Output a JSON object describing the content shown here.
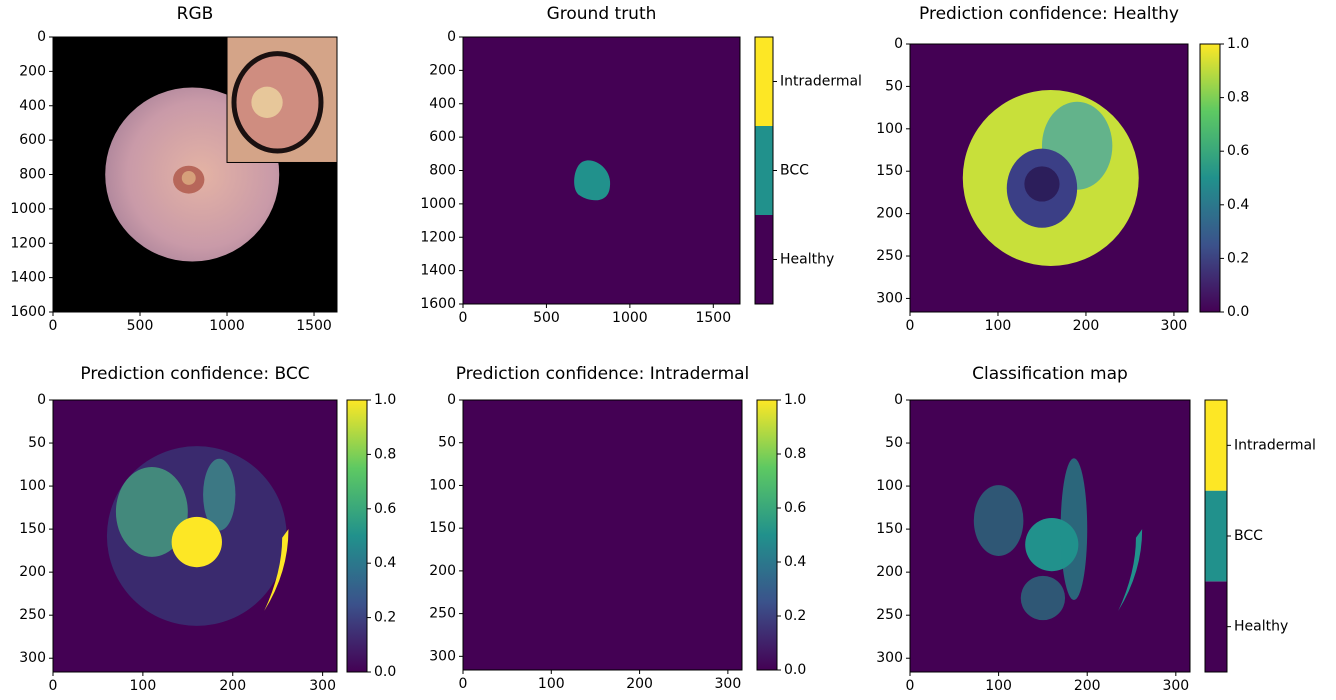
{
  "chart_data": [
    {
      "type": "image",
      "title": "RGB",
      "xlim": [
        0,
        1632
      ],
      "ylim": [
        1600,
        0
      ],
      "xticks": [
        0,
        500,
        1000,
        1500
      ],
      "yticks": [
        0,
        200,
        400,
        600,
        800,
        1000,
        1200,
        1400,
        1600
      ]
    },
    {
      "type": "image",
      "title": "Ground truth",
      "xlim": [
        0,
        1660
      ],
      "ylim": [
        1600,
        0
      ],
      "xticks": [
        0,
        500,
        1000,
        1500
      ],
      "yticks": [
        0,
        200,
        400,
        600,
        800,
        1000,
        1200,
        1400,
        1600
      ],
      "colorbar": {
        "categories": [
          "Healthy",
          "BCC",
          "Intradermal"
        ],
        "colors": [
          "#440154",
          "#21918c",
          "#fde725"
        ]
      }
    },
    {
      "type": "image",
      "title": "Prediction confidence: Healthy",
      "xlim": [
        0,
        316
      ],
      "ylim": [
        316,
        0
      ],
      "xticks": [
        0,
        100,
        200,
        300
      ],
      "yticks": [
        0,
        50,
        100,
        150,
        200,
        250,
        300
      ],
      "colorbar": {
        "clim": [
          0,
          1
        ],
        "ticks": [
          {
            "value": 0,
            "label": "0.0"
          },
          0.2,
          0.4,
          0.6,
          0.8,
          {
            "value": 1,
            "label": "1.0"
          }
        ]
      }
    },
    {
      "type": "image",
      "title": "Prediction confidence: BCC",
      "xlim": [
        0,
        316
      ],
      "ylim": [
        316,
        0
      ],
      "xticks": [
        0,
        100,
        200,
        300
      ],
      "yticks": [
        0,
        50,
        100,
        150,
        200,
        250,
        300
      ],
      "colorbar": {
        "clim": [
          0,
          1
        ],
        "ticks": [
          {
            "value": 0,
            "label": "0.0"
          },
          0.2,
          0.4,
          0.6,
          0.8,
          {
            "value": 1,
            "label": "1.0"
          }
        ]
      }
    },
    {
      "type": "image",
      "title": "Prediction confidence: Intradermal",
      "xlim": [
        0,
        316
      ],
      "ylim": [
        316,
        0
      ],
      "xticks": [
        0,
        100,
        200,
        300
      ],
      "yticks": [
        0,
        50,
        100,
        150,
        200,
        250,
        300
      ],
      "colorbar": {
        "clim": [
          0,
          1
        ],
        "ticks": [
          {
            "value": 0,
            "label": "0.0"
          },
          0.2,
          0.4,
          0.6,
          0.8,
          {
            "value": 1,
            "label": "1.0"
          }
        ]
      }
    },
    {
      "type": "image",
      "title": "Classification map",
      "xlim": [
        0,
        316
      ],
      "ylim": [
        316,
        0
      ],
      "xticks": [
        0,
        100,
        200,
        300
      ],
      "yticks": [
        0,
        50,
        100,
        150,
        200,
        250,
        300
      ],
      "colorbar": {
        "categories": [
          "Healthy",
          "BCC",
          "Intradermal"
        ],
        "colors": [
          "#440154",
          "#21918c",
          "#fde725"
        ]
      }
    }
  ]
}
